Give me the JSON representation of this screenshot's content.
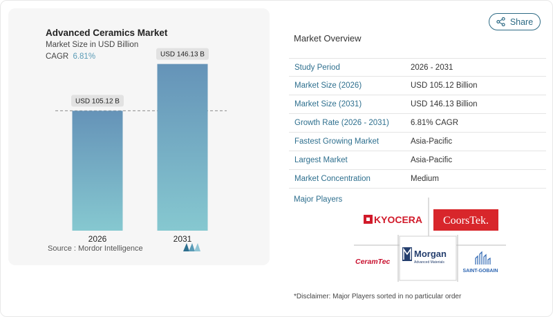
{
  "chart": {
    "title": "Advanced Ceramics Market",
    "subtitle": "Market Size in USD Billion",
    "cagr_label": "CAGR",
    "cagr_value": "6.81%",
    "source": "Source :  Mordor Intelligence"
  },
  "chart_data": {
    "type": "bar",
    "title": "Advanced Ceramics Market",
    "subtitle": "Market Size in USD Billion",
    "categories": [
      "2026",
      "2031"
    ],
    "values": [
      105.12,
      146.13
    ],
    "data_labels": [
      "USD 105.12 B",
      "USD 146.13 B"
    ],
    "ylabel": "",
    "xlabel": "",
    "ylim": [
      0,
      155
    ],
    "grid": false,
    "reference_line_value": 105.12,
    "colors": {
      "bar_top": "#6593b8",
      "bar_bottom": "#85c7cf",
      "label_bg": "#e2e2e2"
    }
  },
  "share": {
    "label": "Share"
  },
  "overview": {
    "title": "Market Overview",
    "rows": [
      {
        "label": "Study Period",
        "value": "2026 - 2031"
      },
      {
        "label": "Market Size (2026)",
        "value": "USD 105.12 Billion"
      },
      {
        "label": "Market Size (2031)",
        "value": "USD 146.13 Billion"
      },
      {
        "label": "Growth Rate (2026 - 2031)",
        "value": "6.81% CAGR"
      },
      {
        "label": "Fastest Growing Market",
        "value": "Asia-Pacific"
      },
      {
        "label": "Largest Market",
        "value": "Asia-Pacific"
      },
      {
        "label": "Market Concentration",
        "value": "Medium"
      }
    ]
  },
  "players": {
    "title": "Major Players",
    "logos": {
      "kyocera": "KYOCERA",
      "coorstek": "CoorsTek.",
      "ceramtec": "CeramTec",
      "morgan": "Morgan",
      "morgan_sub": "Advanced Materials",
      "saint_gobain": "SAINT-GOBAIN"
    }
  },
  "disclaimer": "*Disclaimer: Major Players sorted in no particular order",
  "colors": {
    "accent": "#2e6f8e",
    "kyocera_red": "#d11a2a",
    "coorstek_red": "#d8262b",
    "ceramtec_red": "#c8102e",
    "morgan_blue": "#253f6e",
    "saint_gobain_blue": "#2a63b0"
  }
}
